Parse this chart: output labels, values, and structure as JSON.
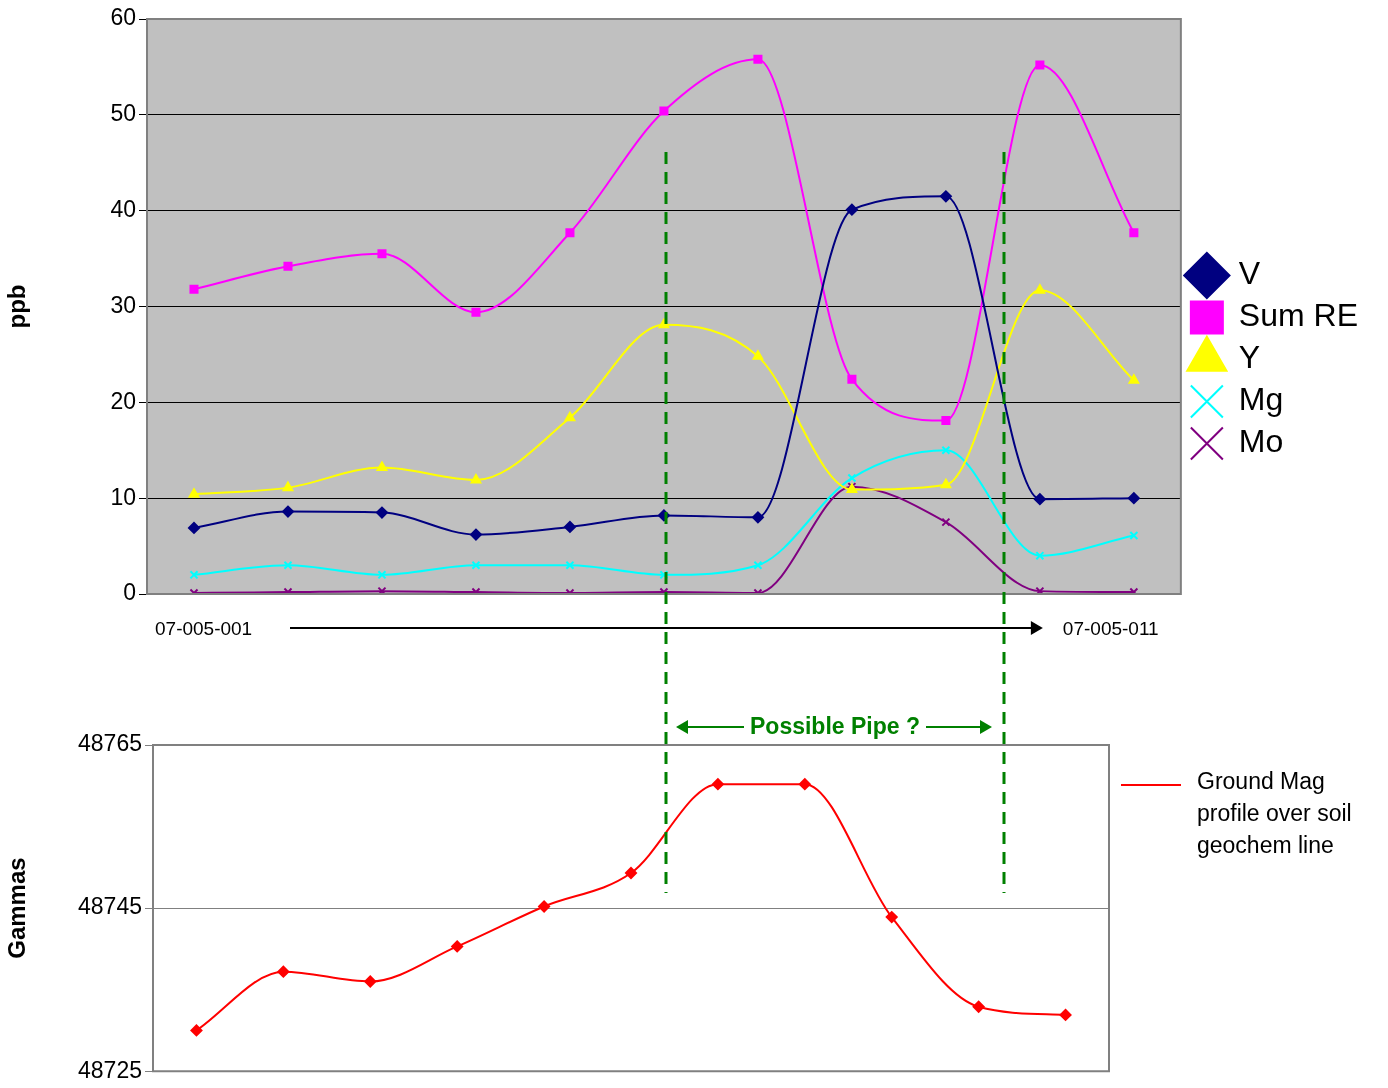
{
  "chart_data": [
    {
      "type": "line",
      "ylabel": "ppb",
      "categories": [
        null,
        null,
        null,
        null,
        null,
        null,
        null,
        null,
        null,
        null,
        null
      ],
      "ylim": [
        0,
        60
      ],
      "yticks": [
        0,
        10,
        20,
        30,
        40,
        50,
        60
      ],
      "grid": "y",
      "legend": "right",
      "series": [
        {
          "name": "V",
          "color": "#000080",
          "marker": "diamond",
          "values": [
            6.9,
            8.6,
            8.5,
            6.2,
            7.0,
            8.2,
            8.0,
            40.1,
            41.5,
            9.9,
            10.0
          ]
        },
        {
          "name": "Sum RE",
          "color": "#ff00ff",
          "marker": "square",
          "values": [
            31.8,
            34.2,
            35.5,
            29.4,
            37.7,
            50.4,
            55.8,
            22.4,
            18.1,
            55.2,
            37.7
          ]
        },
        {
          "name": "Y",
          "color": "#ffff00",
          "marker": "triangle",
          "values": [
            10.4,
            11.1,
            13.2,
            11.9,
            18.4,
            28.1,
            24.8,
            10.9,
            11.4,
            31.7,
            22.3
          ]
        },
        {
          "name": "Mg",
          "color": "#00ffff",
          "marker": "cross",
          "values": [
            2.0,
            3.0,
            2.0,
            3.0,
            3.0,
            2.0,
            3.0,
            12.1,
            15.0,
            4.0,
            6.1
          ]
        },
        {
          "name": "Mo",
          "color": "#800080",
          "marker": "cross",
          "values": [
            0.1,
            0.2,
            0.3,
            0.2,
            0.1,
            0.2,
            0.1,
            11.2,
            7.5,
            0.3,
            0.2
          ]
        }
      ],
      "annotations": [
        "07-005-001",
        "07-005-011"
      ]
    },
    {
      "type": "line",
      "ylabel": "Gammas",
      "categories": [
        null,
        null,
        null,
        null,
        null,
        null,
        null,
        null,
        null,
        null,
        null
      ],
      "ylim": [
        48725,
        48765
      ],
      "yticks": [
        48725,
        48745,
        48765
      ],
      "grid": "y",
      "legend": "right",
      "series": [
        {
          "name": "Ground Mag profile over soil geochem line",
          "color": "#ff0000",
          "marker": "diamond",
          "values": [
            48730.0,
            48737.2,
            48736.0,
            48740.3,
            48745.2,
            48749.3,
            48760.2,
            48760.2,
            48743.9,
            48732.9,
            48731.9
          ]
        }
      ],
      "annotations": [
        "Possible Pipe ?"
      ]
    }
  ]
}
